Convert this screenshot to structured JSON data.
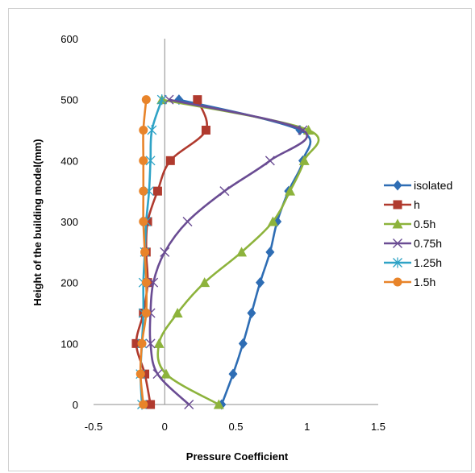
{
  "chart_data": {
    "type": "scatter",
    "title": "",
    "xlabel": "Pressure Coefficient",
    "ylabel": "Height of the building model(mm)",
    "xlim": [
      -0.5,
      1.5
    ],
    "ylim": [
      0,
      600
    ],
    "xticks": [
      "-0.5",
      "0",
      "0.5",
      "1",
      "1.5"
    ],
    "yticks": [
      "0",
      "100",
      "200",
      "300",
      "400",
      "500",
      "600"
    ],
    "grid": false,
    "legend_position": "right",
    "series": [
      {
        "name": "isolated",
        "color": "#2E6DB4",
        "marker": "diamond",
        "points": [
          [
            0.4,
            0
          ],
          [
            0.48,
            50
          ],
          [
            0.55,
            100
          ],
          [
            0.61,
            150
          ],
          [
            0.67,
            200
          ],
          [
            0.74,
            250
          ],
          [
            0.79,
            300
          ],
          [
            0.87,
            350
          ],
          [
            0.97,
            400
          ],
          [
            0.95,
            450
          ],
          [
            0.1,
            500
          ]
        ]
      },
      {
        "name": "h",
        "color": "#B03A2E",
        "marker": "square",
        "points": [
          [
            -0.1,
            0
          ],
          [
            -0.14,
            50
          ],
          [
            -0.2,
            100
          ],
          [
            -0.15,
            150
          ],
          [
            -0.12,
            200
          ],
          [
            -0.13,
            250
          ],
          [
            -0.12,
            300
          ],
          [
            -0.05,
            350
          ],
          [
            0.04,
            400
          ],
          [
            0.29,
            450
          ],
          [
            0.23,
            500
          ]
        ]
      },
      {
        "name": "0.5h",
        "color": "#8DB33C",
        "marker": "triangle",
        "points": [
          [
            0.38,
            0
          ],
          [
            0.01,
            50
          ],
          [
            -0.04,
            100
          ],
          [
            0.09,
            150
          ],
          [
            0.28,
            200
          ],
          [
            0.54,
            250
          ],
          [
            0.76,
            300
          ],
          [
            0.88,
            350
          ],
          [
            0.98,
            400
          ],
          [
            1.01,
            450
          ],
          [
            -0.02,
            500
          ]
        ]
      },
      {
        "name": "0.75h",
        "color": "#6A4C93",
        "marker": "x",
        "points": [
          [
            0.17,
            0
          ],
          [
            -0.05,
            50
          ],
          [
            -0.1,
            100
          ],
          [
            -0.1,
            150
          ],
          [
            -0.08,
            200
          ],
          [
            0.0,
            250
          ],
          [
            0.16,
            300
          ],
          [
            0.42,
            350
          ],
          [
            0.74,
            400
          ],
          [
            0.97,
            450
          ],
          [
            0.03,
            500
          ]
        ]
      },
      {
        "name": "1.25h",
        "color": "#2FA3C6",
        "marker": "star",
        "points": [
          [
            -0.16,
            0
          ],
          [
            -0.17,
            50
          ],
          [
            -0.16,
            100
          ],
          [
            -0.15,
            150
          ],
          [
            -0.15,
            200
          ],
          [
            -0.14,
            250
          ],
          [
            -0.13,
            300
          ],
          [
            -0.11,
            350
          ],
          [
            -0.1,
            400
          ],
          [
            -0.09,
            450
          ],
          [
            -0.02,
            500
          ]
        ]
      },
      {
        "name": "1.5h",
        "color": "#E8842A",
        "marker": "circle",
        "points": [
          [
            -0.15,
            0
          ],
          [
            -0.17,
            50
          ],
          [
            -0.16,
            100
          ],
          [
            -0.13,
            150
          ],
          [
            -0.13,
            200
          ],
          [
            -0.14,
            250
          ],
          [
            -0.15,
            300
          ],
          [
            -0.15,
            350
          ],
          [
            -0.15,
            400
          ],
          [
            -0.15,
            450
          ],
          [
            -0.13,
            500
          ]
        ]
      }
    ]
  }
}
